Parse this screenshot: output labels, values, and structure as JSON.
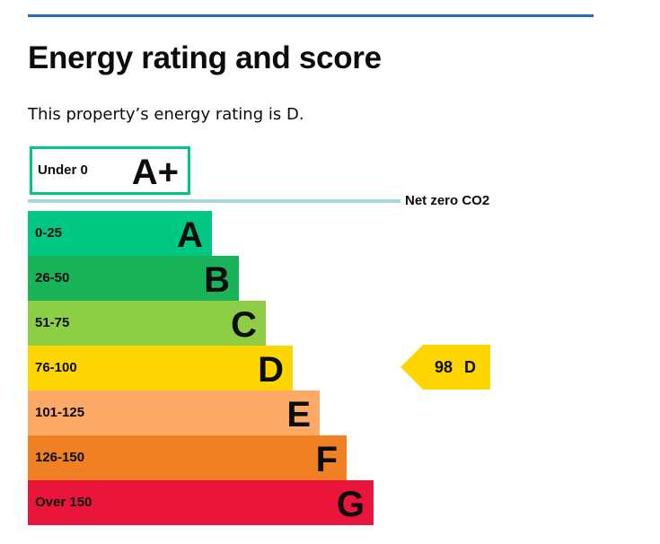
{
  "header": {
    "title": "Energy rating and score",
    "summary": "This property’s energy rating is D."
  },
  "aplus_band": {
    "range": "Under 0",
    "letter": "A+",
    "color": "#00c781"
  },
  "net_zero_label": "Net zero CO2",
  "bands": [
    {
      "range": "0-25",
      "letter": "A",
      "color": "#00c781"
    },
    {
      "range": "26-50",
      "letter": "B",
      "color": "#19b459"
    },
    {
      "range": "51-75",
      "letter": "C",
      "color": "#8dce46"
    },
    {
      "range": "76-100",
      "letter": "D",
      "color": "#ffd500"
    },
    {
      "range": "101-125",
      "letter": "E",
      "color": "#fcaa65"
    },
    {
      "range": "126-150",
      "letter": "F",
      "color": "#ef8023"
    },
    {
      "range": "Over 150",
      "letter": "G",
      "color": "#e9153b"
    }
  ],
  "current_rating": {
    "score": "98",
    "letter": "D",
    "color": "#ffd500"
  }
}
